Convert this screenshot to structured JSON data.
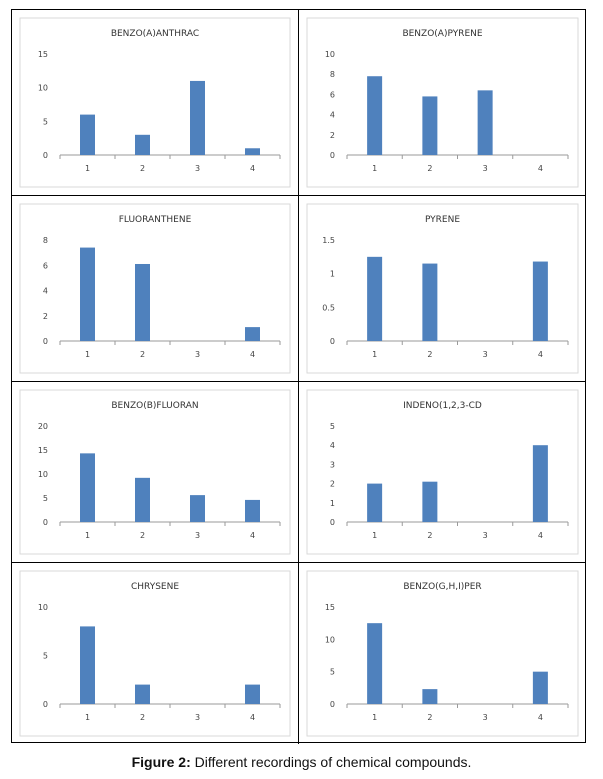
{
  "caption": {
    "label": "Figure 2:",
    "text": " Different recordings of chemical compounds."
  },
  "colors": {
    "bar": "#4f81bd",
    "axis": "#9a9a9a",
    "frame": "#d9d9d9"
  },
  "chart_data": [
    {
      "type": "bar",
      "title": "BENZO(A)ANTHRAC",
      "categories": [
        "1",
        "2",
        "3",
        "4"
      ],
      "values": [
        6,
        3,
        11,
        1
      ],
      "ylim": [
        0,
        15
      ],
      "yticks": [
        "0",
        "5",
        "10",
        "15"
      ],
      "ytick_values": [
        0,
        5,
        10,
        15
      ]
    },
    {
      "type": "bar",
      "title": "BENZO(A)PYRENE",
      "categories": [
        "1",
        "2",
        "3",
        "4"
      ],
      "values": [
        7.8,
        5.8,
        6.4,
        0
      ],
      "ylim": [
        0,
        10
      ],
      "yticks": [
        "0",
        "2",
        "4",
        "6",
        "8",
        "10"
      ],
      "ytick_values": [
        0,
        2,
        4,
        6,
        8,
        10
      ]
    },
    {
      "type": "bar",
      "title": "FLUORANTHENE",
      "categories": [
        "1",
        "2",
        "3",
        "4"
      ],
      "values": [
        7.4,
        6.1,
        0,
        1.1
      ],
      "ylim": [
        0,
        8
      ],
      "yticks": [
        "0",
        "2",
        "4",
        "6",
        "8"
      ],
      "ytick_values": [
        0,
        2,
        4,
        6,
        8
      ]
    },
    {
      "type": "bar",
      "title": "PYRENE",
      "categories": [
        "1",
        "2",
        "3",
        "4"
      ],
      "values": [
        1.25,
        1.15,
        0,
        1.18
      ],
      "ylim": [
        0,
        1.5
      ],
      "yticks": [
        "0",
        "0.5",
        "1",
        "1.5"
      ],
      "ytick_values": [
        0,
        0.5,
        1,
        1.5
      ]
    },
    {
      "type": "bar",
      "title": "BENZO(B)FLUORAN",
      "categories": [
        "1",
        "2",
        "3",
        "4"
      ],
      "values": [
        14.3,
        9.2,
        5.6,
        4.6
      ],
      "ylim": [
        0,
        20
      ],
      "yticks": [
        "0",
        "5",
        "10",
        "15",
        "20"
      ],
      "ytick_values": [
        0,
        5,
        10,
        15,
        20
      ]
    },
    {
      "type": "bar",
      "title": "INDENO(1,2,3-CD",
      "categories": [
        "1",
        "2",
        "3",
        "4"
      ],
      "values": [
        2,
        2.1,
        0,
        4
      ],
      "ylim": [
        0,
        5
      ],
      "yticks": [
        "0",
        "1",
        "2",
        "3",
        "4",
        "5"
      ],
      "ytick_values": [
        0,
        1,
        2,
        3,
        4,
        5
      ]
    },
    {
      "type": "bar",
      "title": "CHRYSENE",
      "categories": [
        "1",
        "2",
        "3",
        "4"
      ],
      "values": [
        8,
        2,
        0,
        2
      ],
      "ylim": [
        0,
        10
      ],
      "yticks": [
        "0",
        "5",
        "10"
      ],
      "ytick_values": [
        0,
        5,
        10
      ]
    },
    {
      "type": "bar",
      "title": "BENZO(G,H,I)PER",
      "categories": [
        "1",
        "2",
        "3",
        "4"
      ],
      "values": [
        12.5,
        2.3,
        0,
        5
      ],
      "ylim": [
        0,
        15
      ],
      "yticks": [
        "0",
        "5",
        "10",
        "15"
      ],
      "ytick_values": [
        0,
        5,
        10,
        15
      ]
    }
  ]
}
